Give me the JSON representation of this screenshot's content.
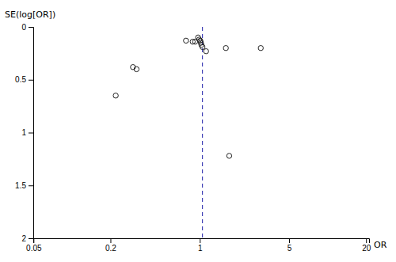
{
  "chart_data": {
    "type": "scatter",
    "x_label": "OR",
    "y_label": "SE(log[OR])",
    "x": [
      0.78,
      0.88,
      0.92,
      0.97,
      0.99,
      1.01,
      1.02,
      1.03,
      1.05,
      1.12,
      1.6,
      3.0,
      1.7,
      0.3,
      0.32,
      0.22
    ],
    "values": [
      0.13,
      0.14,
      0.14,
      0.1,
      0.12,
      0.13,
      0.15,
      0.17,
      0.19,
      0.23,
      0.2,
      0.2,
      1.22,
      0.38,
      0.4,
      0.65
    ],
    "log": "x",
    "xlim": [
      0.049787,
      21.115344
    ],
    "xticks": [
      0.05,
      0.2,
      1,
      5,
      20
    ],
    "ylim": [
      2.0,
      0.0
    ],
    "yticks": [
      0,
      0.5,
      1,
      1.5,
      2
    ],
    "color": "#222222",
    "marker": "open-circle",
    "reference_line": {
      "value": 1.05,
      "color": "#2222aa",
      "line_style": "dashed"
    },
    "grid": false
  }
}
